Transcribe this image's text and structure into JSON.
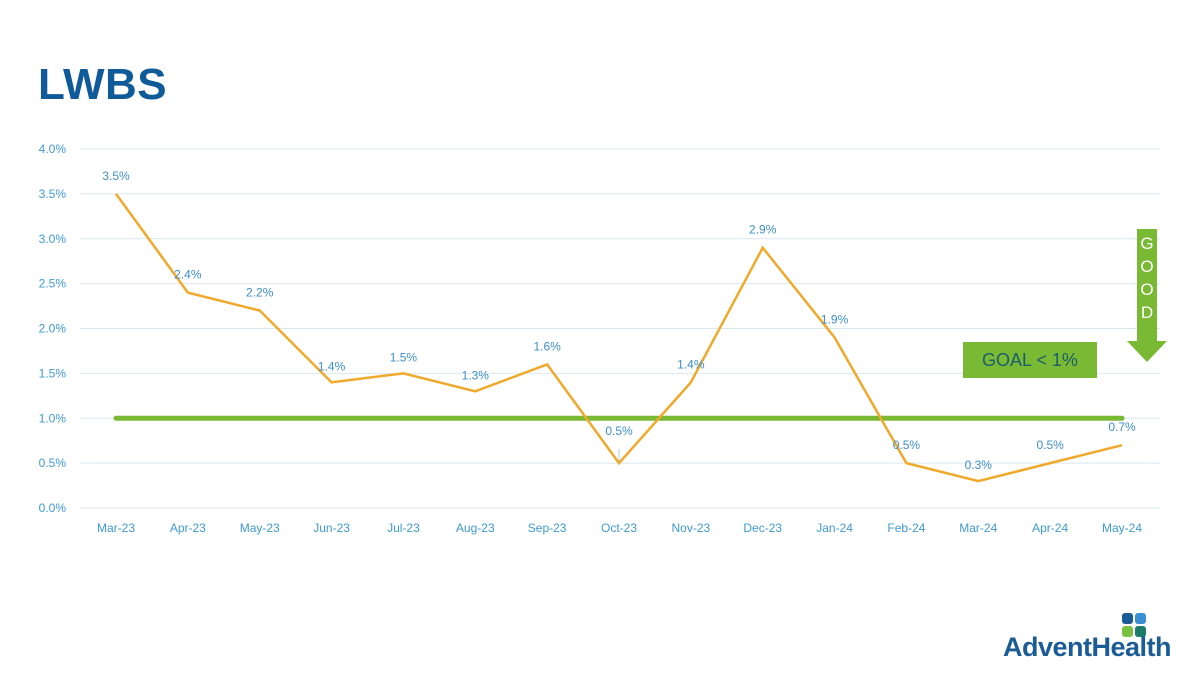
{
  "page": {
    "title": "LWBS"
  },
  "annotations": {
    "goal_label": "GOAL < 1%",
    "good_letters": [
      "G",
      "O",
      "O",
      "D"
    ]
  },
  "logo": {
    "text": "AdventHealth",
    "colors": {
      "text": "#1b5c97",
      "tile_dark_blue": "#1b5c97",
      "tile_light_blue": "#3b8fd0",
      "tile_green": "#7ac143",
      "tile_teal": "#1a7d6a"
    }
  },
  "colors": {
    "title": "#0f5a98",
    "series_line": "#f0a92a",
    "goal_line": "#7ab934",
    "gridline": "#d9e8f0",
    "axis_text": "#3d9bd6"
  },
  "chart_data": {
    "type": "line",
    "title": "LWBS",
    "xlabel": "",
    "ylabel": "",
    "categories": [
      "Mar-23",
      "Apr-23",
      "May-23",
      "Jun-23",
      "Jul-23",
      "Aug-23",
      "Sep-23",
      "Oct-23",
      "Nov-23",
      "Dec-23",
      "Jan-24",
      "Feb-24",
      "Mar-24",
      "Apr-24",
      "May-24"
    ],
    "series": [
      {
        "name": "LWBS",
        "values": [
          3.5,
          2.4,
          2.2,
          1.4,
          1.5,
          1.3,
          1.6,
          0.5,
          1.4,
          2.9,
          1.9,
          0.5,
          0.3,
          0.5,
          0.7
        ],
        "labels": [
          "3.5%",
          "2.4%",
          "2.2%",
          "1.4%",
          "1.5%",
          "1.3%",
          "1.6%",
          "0.5%",
          "1.4%",
          "2.9%",
          "1.9%",
          "0.5%",
          "0.3%",
          "0.5%",
          "0.7%"
        ]
      },
      {
        "name": "Goal",
        "values": [
          1.0,
          1.0,
          1.0,
          1.0,
          1.0,
          1.0,
          1.0,
          1.0,
          1.0,
          1.0,
          1.0,
          1.0,
          1.0,
          1.0,
          1.0
        ]
      }
    ],
    "yticks": [
      "0.0%",
      "0.5%",
      "1.0%",
      "1.5%",
      "2.0%",
      "2.5%",
      "3.0%",
      "3.5%",
      "4.0%"
    ],
    "ytick_values": [
      0,
      0.5,
      1.0,
      1.5,
      2.0,
      2.5,
      3.0,
      3.5,
      4.0
    ],
    "ylim": [
      0,
      4.0
    ],
    "grid": true,
    "legend": "none",
    "annotations": [
      "GOAL < 1%",
      "GOOD (downward arrow)"
    ]
  }
}
